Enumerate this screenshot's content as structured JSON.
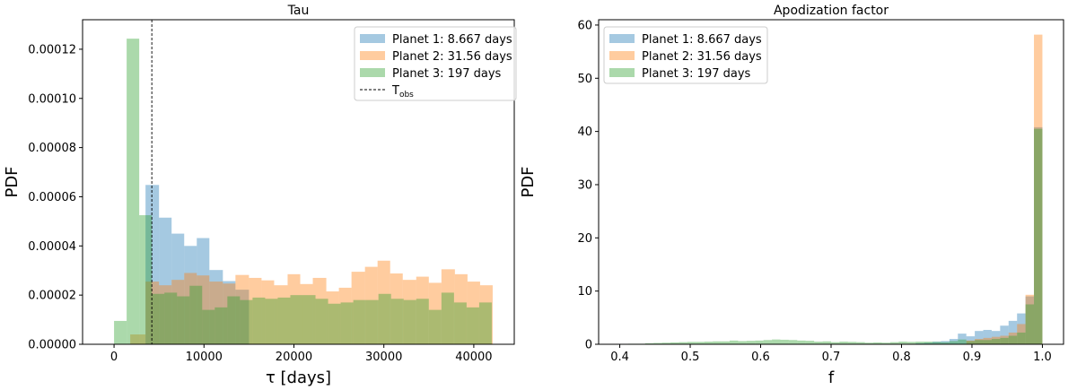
{
  "chart_data": [
    {
      "type": "histogram",
      "title": "Tau",
      "xlabel": "τ [days]",
      "ylabel": "PDF",
      "xlim": [
        -3500,
        44500
      ],
      "ylim": [
        0,
        0.000132
      ],
      "xticks": [
        0,
        10000,
        20000,
        30000,
        40000
      ],
      "xtick_labels": [
        "0",
        "10000",
        "20000",
        "30000",
        "40000"
      ],
      "yticks": [
        0,
        2e-05,
        4e-05,
        6e-05,
        8e-05,
        0.0001,
        0.00012
      ],
      "ytick_labels": [
        "0.00000",
        "0.00002",
        "0.00004",
        "0.00006",
        "0.00008",
        "0.00010",
        "0.00012"
      ],
      "vline": {
        "x": 4200,
        "label": "T",
        "label_sub": "obs"
      },
      "legend_position": "upper right",
      "series": [
        {
          "name": "Planet 1: 8.667 days",
          "color": "#1f77b4",
          "bins": [
            [
              3500,
              5000,
              6.48e-05
            ],
            [
              5000,
              6400,
              5.15e-05
            ],
            [
              6400,
              7800,
              4.5e-05
            ],
            [
              7800,
              9200,
              4e-05
            ],
            [
              9200,
              10600,
              4.32e-05
            ],
            [
              10600,
              12100,
              3.02e-05
            ],
            [
              12100,
              13500,
              2.57e-05
            ],
            [
              13500,
              15000,
              2.22e-05
            ]
          ]
        },
        {
          "name": "Planet 2: 31.56 days",
          "color": "#ff7f0e",
          "bins": [
            [
              1800,
              3500,
              4e-06
            ],
            [
              3500,
              5000,
              2.55e-05
            ],
            [
              5000,
              6400,
              2.4e-05
            ],
            [
              6400,
              7800,
              2.62e-05
            ],
            [
              7800,
              9200,
              2.9e-05
            ],
            [
              9200,
              10600,
              2.8e-05
            ],
            [
              10600,
              12100,
              2.55e-05
            ],
            [
              12100,
              13500,
              2.47e-05
            ],
            [
              13500,
              15000,
              2.82e-05
            ],
            [
              15000,
              16400,
              2.7e-05
            ],
            [
              16400,
              17800,
              2.6e-05
            ],
            [
              17800,
              19300,
              2.4e-05
            ],
            [
              19300,
              20700,
              2.85e-05
            ],
            [
              20700,
              22100,
              2.45e-05
            ],
            [
              22100,
              23600,
              2.7e-05
            ],
            [
              23600,
              25000,
              2.15e-05
            ],
            [
              25000,
              26400,
              2.3e-05
            ],
            [
              26400,
              27900,
              2.95e-05
            ],
            [
              27900,
              29300,
              3.15e-05
            ],
            [
              29300,
              30700,
              3.4e-05
            ],
            [
              30700,
              32100,
              2.88e-05
            ],
            [
              32100,
              33600,
              2.62e-05
            ],
            [
              33600,
              35000,
              2.75e-05
            ],
            [
              35000,
              36400,
              2.5e-05
            ],
            [
              36400,
              37900,
              3.05e-05
            ],
            [
              37900,
              39300,
              2.85e-05
            ],
            [
              39300,
              40700,
              2.55e-05
            ],
            [
              40700,
              42100,
              2.4e-05
            ]
          ]
        },
        {
          "name": "Planet 3: 197 days",
          "color": "#2ca02c",
          "bins": [
            [
              0,
              1400,
              9.5e-06
            ],
            [
              1400,
              2800,
              0.0001243
            ],
            [
              2800,
              4200,
              5.25e-05
            ],
            [
              4200,
              5600,
              2.05e-05
            ],
            [
              5600,
              7000,
              2.1e-05
            ],
            [
              7000,
              8400,
              1.95e-05
            ],
            [
              8400,
              9800,
              2.38e-05
            ],
            [
              9800,
              11200,
              1.4e-05
            ],
            [
              11200,
              12600,
              1.5e-05
            ],
            [
              12600,
              14000,
              1.95e-05
            ],
            [
              14000,
              15400,
              1.8e-05
            ],
            [
              15400,
              16800,
              1.9e-05
            ],
            [
              16800,
              18200,
              1.85e-05
            ],
            [
              18200,
              19600,
              1.9e-05
            ],
            [
              19600,
              21000,
              2e-05
            ],
            [
              21000,
              22400,
              2e-05
            ],
            [
              22400,
              23800,
              1.85e-05
            ],
            [
              23800,
              25200,
              1.65e-05
            ],
            [
              25200,
              26600,
              1.7e-05
            ],
            [
              26600,
              28000,
              1.8e-05
            ],
            [
              28000,
              29400,
              1.8e-05
            ],
            [
              29400,
              30800,
              2.05e-05
            ],
            [
              30800,
              32200,
              1.85e-05
            ],
            [
              32200,
              33600,
              1.8e-05
            ],
            [
              33600,
              35000,
              1.85e-05
            ],
            [
              35000,
              36400,
              1.4e-05
            ],
            [
              36400,
              37800,
              2.1e-05
            ],
            [
              37800,
              39200,
              1.7e-05
            ],
            [
              39200,
              40600,
              1.5e-05
            ],
            [
              40600,
              42000,
              1.7e-05
            ]
          ]
        }
      ]
    },
    {
      "type": "histogram",
      "title": "Apodization factor",
      "xlabel": "f",
      "ylabel": "PDF",
      "xlim": [
        0.37,
        1.03
      ],
      "ylim": [
        0,
        61
      ],
      "xticks": [
        0.4,
        0.5,
        0.6,
        0.7,
        0.8,
        0.9,
        1.0
      ],
      "xtick_labels": [
        "0.4",
        "0.5",
        "0.6",
        "0.7",
        "0.8",
        "0.9",
        "1.0"
      ],
      "yticks": [
        0,
        10,
        20,
        30,
        40,
        50,
        60
      ],
      "ytick_labels": [
        "0",
        "10",
        "20",
        "30",
        "40",
        "50",
        "60"
      ],
      "legend_position": "upper left",
      "series": [
        {
          "name": "Planet 1: 8.667 days",
          "color": "#1f77b4",
          "bins": [
            [
              0.82,
              0.832,
              0.2
            ],
            [
              0.832,
              0.844,
              0.3
            ],
            [
              0.844,
              0.856,
              0.5
            ],
            [
              0.856,
              0.868,
              0.6
            ],
            [
              0.868,
              0.88,
              1.0
            ],
            [
              0.88,
              0.892,
              2.0
            ],
            [
              0.892,
              0.904,
              1.5
            ],
            [
              0.904,
              0.916,
              2.5
            ],
            [
              0.916,
              0.928,
              2.7
            ],
            [
              0.928,
              0.94,
              2.5
            ],
            [
              0.94,
              0.952,
              3.5
            ],
            [
              0.952,
              0.964,
              4.4
            ],
            [
              0.964,
              0.976,
              5.8
            ],
            [
              0.976,
              0.988,
              9.0
            ],
            [
              0.988,
              1.0,
              40.8
            ]
          ]
        },
        {
          "name": "Planet 2: 31.56 days",
          "color": "#ff7f0e",
          "bins": [
            [
              0.892,
              0.904,
              0.7
            ],
            [
              0.904,
              0.916,
              1.0
            ],
            [
              0.916,
              0.928,
              1.2
            ],
            [
              0.928,
              0.94,
              1.4
            ],
            [
              0.94,
              0.952,
              1.6
            ],
            [
              0.952,
              0.964,
              2.2
            ],
            [
              0.964,
              0.976,
              3.8
            ],
            [
              0.976,
              0.988,
              9.3
            ],
            [
              0.988,
              1.0,
              58.2
            ]
          ]
        },
        {
          "name": "Planet 3: 197 days",
          "color": "#2ca02c",
          "bins": [
            [
              0.4,
              0.412,
              0.05
            ],
            [
              0.412,
              0.424,
              0.1
            ],
            [
              0.424,
              0.436,
              0.1
            ],
            [
              0.436,
              0.448,
              0.2
            ],
            [
              0.448,
              0.46,
              0.25
            ],
            [
              0.46,
              0.472,
              0.3
            ],
            [
              0.472,
              0.484,
              0.35
            ],
            [
              0.484,
              0.496,
              0.4
            ],
            [
              0.496,
              0.508,
              0.45
            ],
            [
              0.508,
              0.52,
              0.45
            ],
            [
              0.52,
              0.532,
              0.5
            ],
            [
              0.532,
              0.544,
              0.55
            ],
            [
              0.544,
              0.556,
              0.55
            ],
            [
              0.556,
              0.568,
              0.7
            ],
            [
              0.568,
              0.58,
              0.6
            ],
            [
              0.58,
              0.592,
              0.65
            ],
            [
              0.592,
              0.604,
              0.7
            ],
            [
              0.604,
              0.616,
              0.8
            ],
            [
              0.616,
              0.628,
              0.9
            ],
            [
              0.628,
              0.64,
              0.85
            ],
            [
              0.64,
              0.652,
              0.8
            ],
            [
              0.652,
              0.664,
              0.7
            ],
            [
              0.664,
              0.676,
              0.65
            ],
            [
              0.676,
              0.688,
              0.5
            ],
            [
              0.688,
              0.7,
              0.55
            ],
            [
              0.7,
              0.712,
              0.4
            ],
            [
              0.712,
              0.724,
              0.5
            ],
            [
              0.724,
              0.736,
              0.45
            ],
            [
              0.736,
              0.748,
              0.4
            ],
            [
              0.748,
              0.76,
              0.3
            ],
            [
              0.76,
              0.772,
              0.35
            ],
            [
              0.772,
              0.784,
              0.3
            ],
            [
              0.784,
              0.796,
              0.4
            ],
            [
              0.796,
              0.808,
              0.5
            ],
            [
              0.808,
              0.82,
              0.45
            ],
            [
              0.82,
              0.832,
              0.5
            ],
            [
              0.832,
              0.844,
              0.5
            ],
            [
              0.844,
              0.856,
              0.45
            ],
            [
              0.856,
              0.868,
              0.4
            ],
            [
              0.868,
              0.88,
              0.6
            ],
            [
              0.88,
              0.892,
              0.9
            ],
            [
              0.892,
              0.904,
              0.6
            ],
            [
              0.904,
              0.916,
              0.8
            ],
            [
              0.916,
              0.928,
              0.8
            ],
            [
              0.928,
              0.94,
              1.0
            ],
            [
              0.94,
              0.952,
              1.2
            ],
            [
              0.952,
              0.964,
              1.6
            ],
            [
              0.964,
              0.976,
              2.2
            ],
            [
              0.976,
              0.988,
              7.5
            ],
            [
              0.988,
              1.0,
              40.5
            ]
          ]
        }
      ]
    }
  ]
}
